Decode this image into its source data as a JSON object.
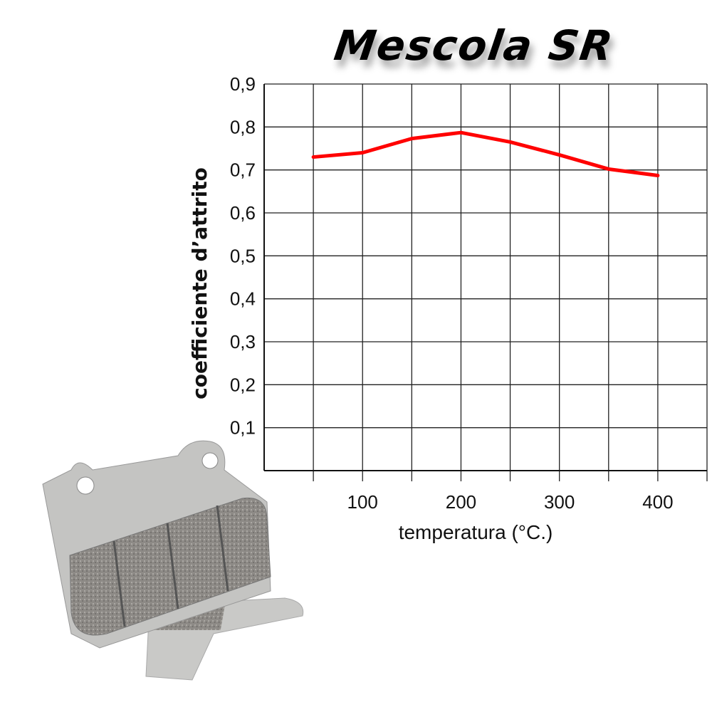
{
  "chart_data": {
    "type": "line",
    "title": "Mescola SR",
    "xlabel": "temperatura (°C.)",
    "ylabel": "coefficiente d’attrito",
    "xlim": [
      0,
      450
    ],
    "ylim": [
      0,
      0.9
    ],
    "x_ticks": [
      50,
      100,
      150,
      200,
      250,
      300,
      350,
      400,
      450
    ],
    "x_tick_labels": [
      "100",
      "200",
      "300",
      "400"
    ],
    "x_tick_label_values": [
      100,
      200,
      300,
      400
    ],
    "y_ticks": [
      0.1,
      0.2,
      0.3,
      0.4,
      0.5,
      0.6,
      0.7,
      0.8,
      0.9
    ],
    "y_tick_labels": [
      "0,1",
      "0,2",
      "0,3",
      "0,4",
      "0,5",
      "0,6",
      "0,7",
      "0,8",
      "0,9"
    ],
    "grid": true,
    "series": [
      {
        "color": "#ff0000",
        "x": [
          50,
          100,
          150,
          200,
          250,
          300,
          350,
          400
        ],
        "values": [
          0.73,
          0.74,
          0.773,
          0.787,
          0.765,
          0.735,
          0.702,
          0.687
        ]
      }
    ]
  }
}
